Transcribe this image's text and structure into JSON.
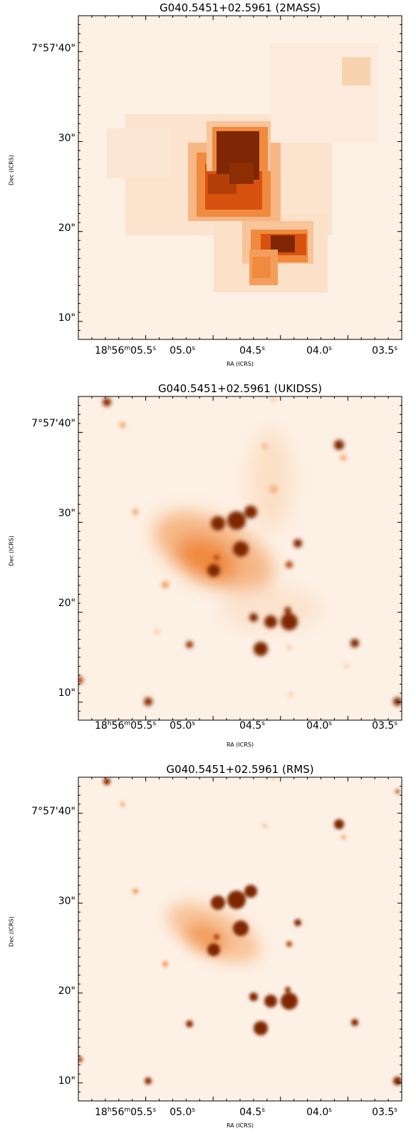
{
  "panels": [
    {
      "id": "2mass",
      "title": "G040.5451+02.5961 (2MASS)",
      "xlabel": "RA (ICRS)",
      "ylabel": "Dec (ICRS)",
      "style": "pixelated",
      "y_ticks": [
        "7°57'40\"",
        "30\"",
        "20\"",
        "10\""
      ],
      "x_ticks": [
        {
          "main": "18",
          "sup1": "h",
          "mid": "56",
          "sup2": "m",
          "rest": "05.5",
          "sup3": "s"
        },
        {
          "main": "05.0",
          "sup3": "s"
        },
        {
          "main": "04.5",
          "sup3": "s"
        },
        {
          "main": "04.0",
          "sup3": "s"
        },
        {
          "main": "03.5",
          "sup3": "s"
        }
      ]
    },
    {
      "id": "ukidss",
      "title": "G040.5451+02.5961 (UKIDSS)",
      "xlabel": "RA (ICRS)",
      "ylabel": "Dec (ICRS)",
      "style": "smooth",
      "y_ticks": [
        "7°57'40\"",
        "30\"",
        "20\"",
        "10\""
      ],
      "x_ticks": [
        {
          "main": "18",
          "sup1": "h",
          "mid": "56",
          "sup2": "m",
          "rest": "05.5",
          "sup3": "s"
        },
        {
          "main": "05.0",
          "sup3": "s"
        },
        {
          "main": "04.5",
          "sup3": "s"
        },
        {
          "main": "04.0",
          "sup3": "s"
        },
        {
          "main": "03.5",
          "sup3": "s"
        }
      ]
    },
    {
      "id": "rms",
      "title": "G040.5451+02.5961 (RMS)",
      "xlabel": "RA (ICRS)",
      "ylabel": "Dec (ICRS)",
      "style": "smooth",
      "y_ticks": [
        "7°57'40\"",
        "30\"",
        "20\"",
        "10\""
      ],
      "x_ticks": [
        {
          "main": "18",
          "sup1": "h",
          "mid": "56",
          "sup2": "m",
          "rest": "05.5",
          "sup3": "s"
        },
        {
          "main": "05.0",
          "sup3": "s"
        },
        {
          "main": "04.5",
          "sup3": "s"
        },
        {
          "main": "04.0",
          "sup3": "s"
        },
        {
          "main": "03.5",
          "sup3": "s"
        }
      ]
    }
  ],
  "colors": {
    "background": "#fdf0e4",
    "light": "#f9d1ac",
    "mid": "#ef8a3e",
    "strong": "#d8520f",
    "dark": "#7f2704"
  }
}
